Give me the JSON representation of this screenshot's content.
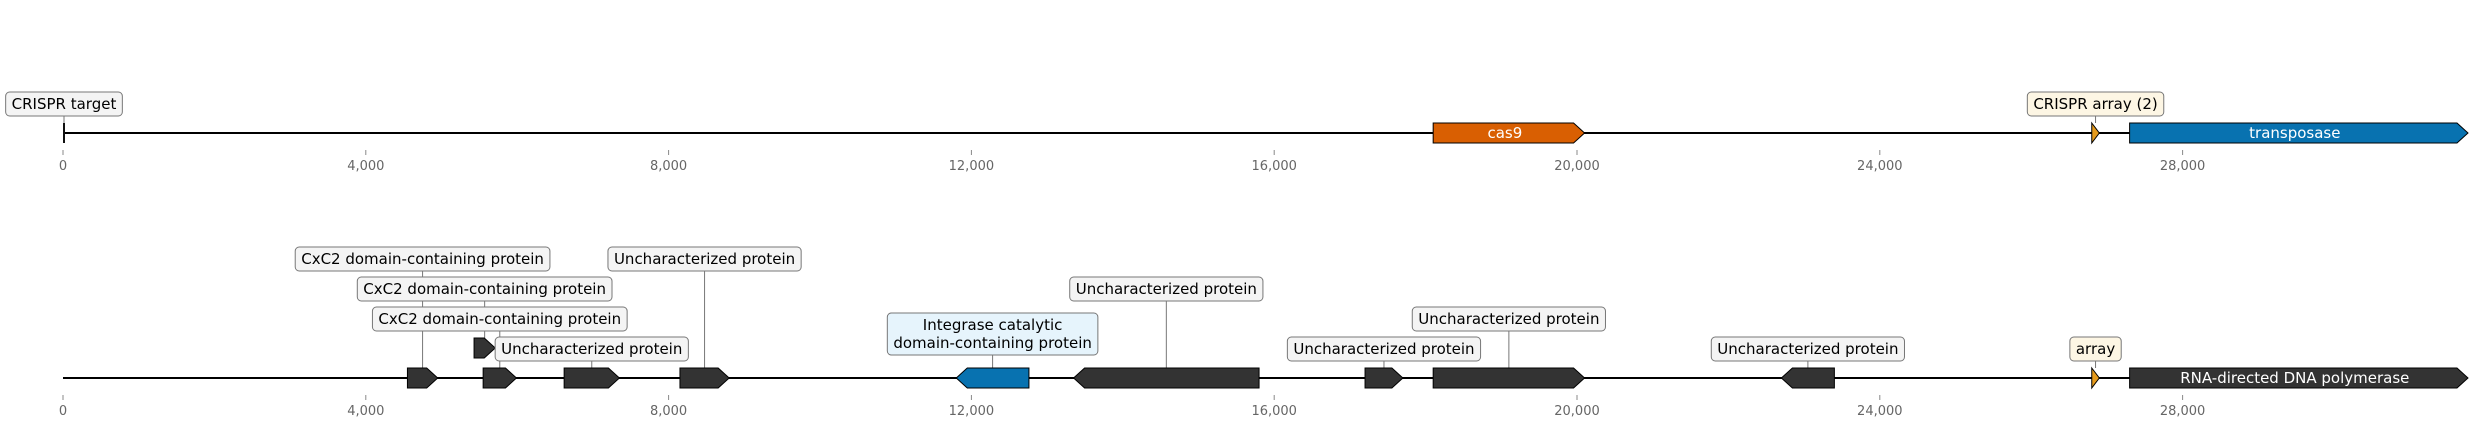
{
  "axis": {
    "max_bp": 31500,
    "ticks": [
      {
        "value": 0,
        "label": "0"
      },
      {
        "value": 4000,
        "label": "4,000"
      },
      {
        "value": 8000,
        "label": "8,000"
      },
      {
        "value": 12000,
        "label": "12,000"
      },
      {
        "value": 16000,
        "label": "16,000"
      },
      {
        "value": 20000,
        "label": "20,000"
      },
      {
        "value": 24000,
        "label": "24,000"
      },
      {
        "value": 28000,
        "label": "28,000"
      }
    ]
  },
  "colors": {
    "cas9": "#d95f02",
    "transposase": "#0872b0",
    "crispr_array": "#e69b1c",
    "dark_gene": "#333333",
    "integrase": "#0872b0",
    "label_gray_bg": "#f4f4f4",
    "label_blue_bg": "#e6f4fc",
    "label_yellow_bg": "#fdf6e4"
  },
  "tracks": [
    {
      "id": "top",
      "features": [
        {
          "name": "CRISPR target",
          "start": 0,
          "end": 40,
          "strand": 1,
          "kind": "mark",
          "color": "#111111",
          "label": "CRISPR target",
          "label_pos": "box",
          "label_level": 0,
          "label_bg": "#f4f4f4"
        },
        {
          "name": "cas9",
          "start": 18100,
          "end": 20100,
          "strand": 1,
          "kind": "gene",
          "color": "#d95f02",
          "label": "cas9",
          "label_pos": "inside"
        },
        {
          "name": "CRISPR array (2)",
          "start": 26800,
          "end": 26900,
          "strand": 1,
          "kind": "gene",
          "color": "#e69b1c",
          "label": "CRISPR array (2)",
          "label_pos": "box",
          "label_level": 0,
          "label_bg": "#fdf6e4"
        },
        {
          "name": "transposase",
          "start": 27300,
          "end": 31770,
          "strand": 1,
          "kind": "gene",
          "color": "#0872b0",
          "label": "transposase",
          "label_pos": "inside"
        }
      ]
    },
    {
      "id": "bottom",
      "features": [
        {
          "name": "cxc2-1",
          "start": 4550,
          "end": 4950,
          "strand": 1,
          "kind": "gene",
          "color": "#333333",
          "label": "CxC2 domain-containing protein",
          "label_pos": "box",
          "label_level": 4,
          "label_bg": "#f4f4f4"
        },
        {
          "name": "cxc2-2",
          "start": 5430,
          "end": 5710,
          "strand": 1,
          "kind": "gene",
          "color": "#333333",
          "label": "CxC2 domain-containing protein",
          "label_pos": "box",
          "label_level": 3,
          "label_bg": "#f4f4f4",
          "raised": true
        },
        {
          "name": "cxc2-3",
          "start": 5550,
          "end": 5990,
          "strand": 1,
          "kind": "gene",
          "color": "#333333",
          "label": "CxC2 domain-containing protein",
          "label_pos": "box",
          "label_level": 2,
          "label_bg": "#f4f4f4"
        },
        {
          "name": "unchar-1",
          "start": 6620,
          "end": 7350,
          "strand": 1,
          "kind": "gene",
          "color": "#333333",
          "label": "Uncharacterized protein",
          "label_pos": "box",
          "label_level": 1,
          "label_bg": "#f4f4f4"
        },
        {
          "name": "unchar-2",
          "start": 8150,
          "end": 8800,
          "strand": 1,
          "kind": "gene",
          "color": "#333333",
          "label": "Uncharacterized protein",
          "label_pos": "box",
          "label_level": 4,
          "label_bg": "#f4f4f4"
        },
        {
          "name": "integrase",
          "start": 11800,
          "end": 12760,
          "strand": -1,
          "kind": "gene",
          "color": "#0872b0",
          "label": "Integrase catalytic domain-containing protein",
          "label_lines": [
            "Integrase catalytic",
            "domain-containing protein"
          ],
          "label_pos": "box",
          "label_level": 1,
          "label_bg": "#e6f4fc"
        },
        {
          "name": "unchar-3",
          "start": 13350,
          "end": 15800,
          "strand": -1,
          "kind": "gene",
          "color": "#333333",
          "label": "Uncharacterized protein",
          "label_pos": "box",
          "label_level": 3,
          "label_bg": "#f4f4f4"
        },
        {
          "name": "unchar-4",
          "start": 17200,
          "end": 17700,
          "strand": 1,
          "kind": "gene",
          "color": "#333333",
          "label": "Uncharacterized protein",
          "label_pos": "box",
          "label_level": 1,
          "label_bg": "#f4f4f4"
        },
        {
          "name": "unchar-5",
          "start": 18100,
          "end": 20100,
          "strand": 1,
          "kind": "gene",
          "color": "#333333",
          "label": "Uncharacterized protein",
          "label_pos": "box",
          "label_level": 2,
          "label_bg": "#f4f4f4"
        },
        {
          "name": "unchar-6",
          "start": 22700,
          "end": 23400,
          "strand": -1,
          "kind": "gene",
          "color": "#333333",
          "label": "Uncharacterized protein",
          "label_pos": "box",
          "label_level": 1,
          "label_bg": "#f4f4f4"
        },
        {
          "name": "array",
          "start": 26800,
          "end": 26900,
          "strand": 1,
          "kind": "gene",
          "color": "#e69b1c",
          "label": "array",
          "label_pos": "box",
          "label_level": 1,
          "label_bg": "#fdf6e4"
        },
        {
          "name": "RNA-directed DNA polymerase",
          "start": 27300,
          "end": 31770,
          "strand": 1,
          "kind": "gene",
          "color": "#333333",
          "label": "RNA-directed DNA polymerase",
          "label_pos": "inside"
        }
      ]
    }
  ]
}
